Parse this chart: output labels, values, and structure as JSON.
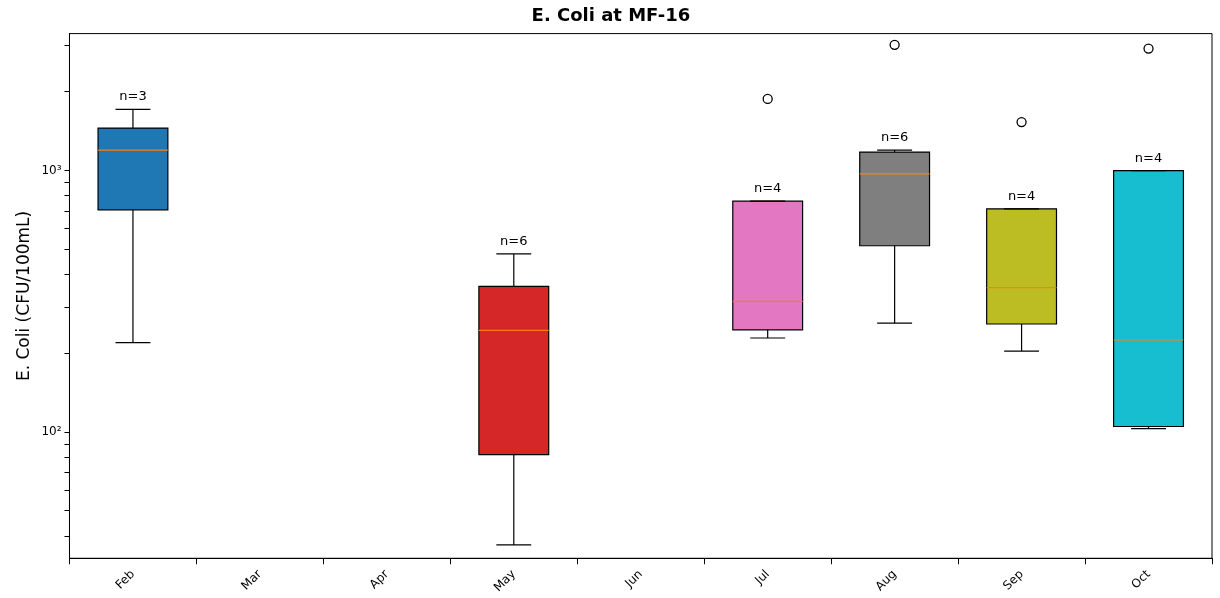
{
  "chart_data": {
    "type": "box",
    "title": "E. Coli at MF-16",
    "ylabel": "E. Coli (CFU/100mL)",
    "categories": [
      "Feb",
      "Mar",
      "Apr",
      "May",
      "Jun",
      "Jul",
      "Aug",
      "Sep",
      "Oct"
    ],
    "colors": [
      "#1f77b4",
      null,
      null,
      "#d62728",
      null,
      "#e377c2",
      "#7f7f7f",
      "#bcbd22",
      "#17becf"
    ],
    "boxes": [
      {
        "low": 220,
        "q1": 708,
        "median": 1198,
        "q3": 1455,
        "high": 1714
      },
      null,
      null,
      {
        "low": 37,
        "q1": 82,
        "median": 245,
        "q3": 361,
        "high": 480
      },
      null,
      {
        "low": 229,
        "q1": 246,
        "median": 316,
        "q3": 764,
        "high": 764,
        "outliers": [
          1880
        ]
      },
      {
        "low": 261,
        "q1": 516,
        "median": 971,
        "q3": 1178,
        "high": 1198,
        "outliers": [
          3027
        ]
      },
      {
        "low": 204,
        "q1": 259,
        "median": 357,
        "q3": 714,
        "high": 714,
        "outliers": [
          1534
        ]
      },
      {
        "low": 103,
        "q1": 105,
        "median": 225,
        "q3": 1000,
        "high": 1000,
        "outliers": [
          2931
        ]
      }
    ],
    "annotations": [
      {
        "text": "n=3",
        "x": "Feb",
        "y": 1714
      },
      {
        "text": "n=6",
        "x": "May",
        "y": 480
      },
      {
        "text": "n=4",
        "x": "Jul",
        "y": 764
      },
      {
        "text": "n=6",
        "x": "Aug",
        "y": 1198
      },
      {
        "text": "n=4",
        "x": "Sep",
        "y": 714
      },
      {
        "text": "n=4",
        "x": "Oct",
        "y": 1000
      }
    ],
    "log": true,
    "ylim": [
      32.9,
      3343
    ],
    "yticks": [
      {
        "value": 40,
        "label": null
      },
      {
        "value": 50,
        "label": null
      },
      {
        "value": 60,
        "label": null
      },
      {
        "value": 70,
        "label": null
      },
      {
        "value": 80,
        "label": null
      },
      {
        "value": 90,
        "label": null
      },
      {
        "value": 100,
        "label": "10²"
      },
      {
        "value": 200,
        "label": null
      },
      {
        "value": 300,
        "label": null
      },
      {
        "value": 400,
        "label": null
      },
      {
        "value": 500,
        "label": null
      },
      {
        "value": 600,
        "label": null
      },
      {
        "value": 700,
        "label": null
      },
      {
        "value": 800,
        "label": null
      },
      {
        "value": 900,
        "label": null
      },
      {
        "value": 1000,
        "label": "10³"
      },
      {
        "value": 2000,
        "label": null
      },
      {
        "value": 3000,
        "label": null
      }
    ],
    "grid": false,
    "legend": false
  }
}
